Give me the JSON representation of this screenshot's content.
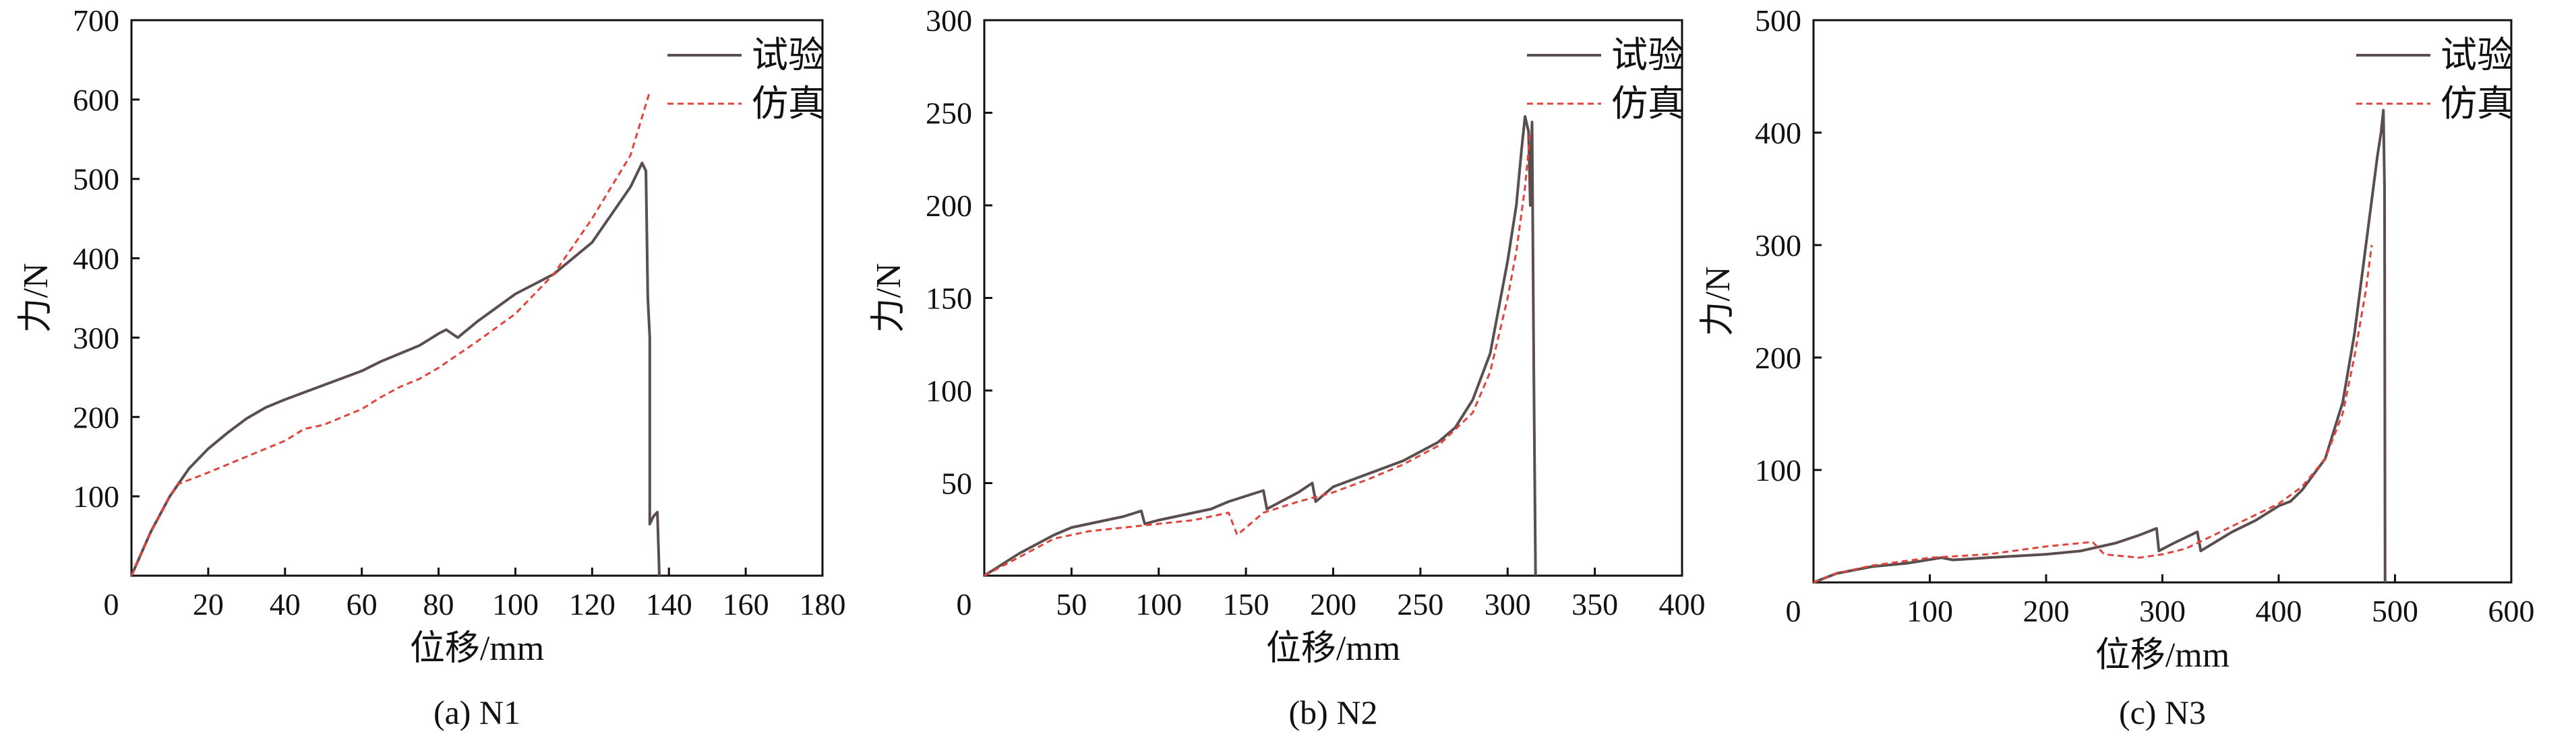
{
  "colors": {
    "test": "#5a4e4e",
    "simulation": "#e0443c",
    "axis": "#111111"
  },
  "chart_data": [
    {
      "type": "line",
      "caption": "(a) N1",
      "xlabel": "位移/mm",
      "ylabel": "力/N",
      "xlim": [
        0,
        180
      ],
      "ylim": [
        0,
        700
      ],
      "xticks": [
        0,
        20,
        40,
        60,
        80,
        100,
        120,
        140,
        160,
        180
      ],
      "yticks": [
        100,
        200,
        300,
        400,
        500,
        600,
        700
      ],
      "origin_label": "0",
      "legend_position": "top-right",
      "series": [
        {
          "name": "试验",
          "style": "solid",
          "x": [
            0,
            5,
            10,
            15,
            20,
            25,
            30,
            35,
            40,
            50,
            60,
            65,
            70,
            75,
            80,
            82,
            85,
            90,
            100,
            110,
            120,
            130,
            133,
            134,
            134.5,
            135,
            135,
            136,
            137,
            137.5
          ],
          "y": [
            0,
            55,
            100,
            135,
            160,
            180,
            198,
            212,
            222,
            240,
            258,
            270,
            280,
            290,
            305,
            310,
            300,
            320,
            355,
            380,
            420,
            490,
            520,
            510,
            350,
            300,
            65,
            75,
            80,
            0
          ]
        },
        {
          "name": "仿真",
          "style": "dashed",
          "x": [
            0,
            5,
            10,
            12,
            20,
            30,
            40,
            45,
            50,
            55,
            60,
            65,
            70,
            75,
            80,
            90,
            100,
            110,
            120,
            130,
            135
          ],
          "y": [
            0,
            55,
            100,
            115,
            130,
            150,
            170,
            185,
            190,
            200,
            210,
            225,
            238,
            248,
            262,
            295,
            330,
            380,
            450,
            530,
            610
          ]
        }
      ]
    },
    {
      "type": "line",
      "caption": "(b) N2",
      "xlabel": "位移/mm",
      "ylabel": "力/N",
      "xlim": [
        0,
        400
      ],
      "ylim": [
        0,
        300
      ],
      "xticks": [
        0,
        50,
        100,
        150,
        200,
        250,
        300,
        350,
        400
      ],
      "yticks": [
        50,
        100,
        150,
        200,
        250,
        300
      ],
      "origin_label": "0",
      "legend_position": "top-right",
      "series": [
        {
          "name": "试验",
          "style": "solid",
          "x": [
            0,
            20,
            40,
            50,
            60,
            80,
            90,
            92,
            100,
            120,
            130,
            140,
            160,
            162,
            170,
            180,
            188,
            190,
            200,
            220,
            240,
            260,
            270,
            280,
            290,
            300,
            305,
            308,
            310,
            312,
            313,
            314,
            315,
            316
          ],
          "y": [
            0,
            12,
            22,
            26,
            28,
            32,
            35,
            28,
            30,
            34,
            36,
            40,
            46,
            36,
            40,
            45,
            50,
            40,
            48,
            55,
            62,
            72,
            80,
            95,
            120,
            170,
            200,
            230,
            248,
            240,
            200,
            245,
            110,
            0
          ]
        },
        {
          "name": "仿真",
          "style": "dashed",
          "x": [
            0,
            20,
            40,
            60,
            80,
            100,
            120,
            140,
            145,
            160,
            180,
            200,
            220,
            240,
            260,
            280,
            290,
            300,
            305,
            310,
            313
          ],
          "y": [
            0,
            10,
            20,
            24,
            26,
            28,
            30,
            34,
            22,
            34,
            40,
            45,
            52,
            60,
            70,
            88,
            110,
            150,
            175,
            210,
            240
          ]
        }
      ]
    },
    {
      "type": "line",
      "caption": "(c) N3",
      "xlabel": "位移/mm",
      "ylabel": "力/N",
      "xlim": [
        0,
        600
      ],
      "ylim": [
        0,
        500
      ],
      "xticks": [
        0,
        100,
        200,
        300,
        400,
        500,
        600
      ],
      "yticks": [
        100,
        200,
        300,
        400,
        500
      ],
      "origin_label": "0",
      "legend_position": "top-right",
      "series": [
        {
          "name": "试验",
          "style": "solid",
          "x": [
            0,
            20,
            50,
            80,
            110,
            120,
            150,
            200,
            230,
            260,
            280,
            295,
            297,
            310,
            330,
            333,
            360,
            380,
            400,
            410,
            420,
            440,
            455,
            465,
            475,
            480,
            485,
            488,
            490,
            491,
            491.5
          ],
          "y": [
            0,
            8,
            14,
            17,
            22,
            20,
            22,
            25,
            28,
            35,
            42,
            48,
            28,
            35,
            45,
            28,
            45,
            55,
            68,
            72,
            82,
            110,
            160,
            220,
            300,
            340,
            380,
            400,
            420,
            350,
            0
          ]
        },
        {
          "name": "仿真",
          "style": "dashed",
          "x": [
            0,
            20,
            50,
            100,
            150,
            200,
            220,
            240,
            250,
            280,
            300,
            320,
            350,
            380,
            400,
            420,
            440,
            455,
            465,
            475,
            480
          ],
          "y": [
            0,
            8,
            15,
            22,
            25,
            32,
            34,
            36,
            25,
            22,
            25,
            30,
            45,
            60,
            70,
            85,
            110,
            150,
            200,
            260,
            300
          ]
        }
      ]
    }
  ]
}
